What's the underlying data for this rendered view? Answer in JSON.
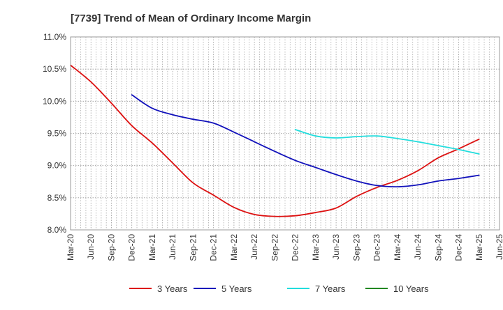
{
  "chart_data": {
    "type": "line",
    "title": "[7739]  Trend of Mean of Ordinary Income Margin",
    "xlabel": "",
    "ylabel": "",
    "x": [
      "Mar-20",
      "Jun-20",
      "Sep-20",
      "Dec-20",
      "Mar-21",
      "Jun-21",
      "Sep-21",
      "Dec-21",
      "Mar-22",
      "Jun-22",
      "Sep-22",
      "Dec-22",
      "Mar-23",
      "Jun-23",
      "Sep-23",
      "Dec-23",
      "Mar-24",
      "Jun-24",
      "Sep-24",
      "Dec-24",
      "Mar-25",
      "Jun-25"
    ],
    "y_ticks": [
      "8.0%",
      "8.5%",
      "9.0%",
      "9.5%",
      "10.0%",
      "10.5%",
      "11.0%"
    ],
    "ylim": [
      8.0,
      11.0
    ],
    "grid": true,
    "legend_position": "bottom",
    "series": [
      {
        "name": "3 Years",
        "color": "#dd1111",
        "values": [
          10.56,
          10.3,
          9.97,
          9.62,
          9.35,
          9.04,
          8.73,
          8.54,
          8.35,
          8.24,
          8.21,
          8.22,
          8.27,
          8.34,
          8.52,
          8.66,
          8.77,
          8.92,
          9.12,
          9.26,
          9.41,
          null
        ]
      },
      {
        "name": "5 Years",
        "color": "#1111bb",
        "values": [
          null,
          null,
          null,
          10.1,
          9.89,
          9.79,
          9.72,
          9.66,
          9.52,
          9.37,
          9.22,
          9.08,
          8.97,
          8.86,
          8.76,
          8.69,
          8.67,
          8.7,
          8.76,
          8.8,
          8.85,
          null
        ]
      },
      {
        "name": "7 Years",
        "color": "#22dddd",
        "values": [
          null,
          null,
          null,
          null,
          null,
          null,
          null,
          null,
          null,
          null,
          null,
          9.56,
          9.46,
          9.43,
          9.45,
          9.46,
          9.42,
          9.37,
          9.31,
          9.25,
          9.18,
          null
        ]
      },
      {
        "name": "10 Years",
        "color": "#228822",
        "values": [
          null,
          null,
          null,
          null,
          null,
          null,
          null,
          null,
          null,
          null,
          null,
          null,
          null,
          null,
          null,
          null,
          null,
          null,
          null,
          null,
          null,
          null
        ]
      }
    ]
  }
}
